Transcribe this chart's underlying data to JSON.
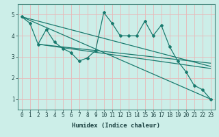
{
  "xlabel": "Humidex (Indice chaleur)",
  "ylabel": "",
  "bg_color": "#cceee8",
  "plot_bg_color": "#cceee8",
  "line_color": "#1a7a6e",
  "grid_color": "#e8b8b8",
  "xlim": [
    -0.5,
    23.5
  ],
  "ylim": [
    0.5,
    5.5
  ],
  "xticks": [
    0,
    1,
    2,
    3,
    4,
    5,
    6,
    7,
    8,
    9,
    10,
    11,
    12,
    13,
    14,
    15,
    16,
    17,
    18,
    19,
    20,
    21,
    22,
    23
  ],
  "yticks": [
    1,
    2,
    3,
    4,
    5
  ],
  "series_zigzag_x": [
    0,
    1,
    2,
    3,
    4,
    5,
    6,
    7,
    8,
    9,
    10,
    11,
    12,
    13,
    14,
    15,
    16,
    17,
    18,
    19,
    20,
    21,
    22,
    23
  ],
  "series_zigzag_y": [
    4.9,
    4.6,
    3.6,
    4.3,
    3.7,
    3.4,
    3.2,
    2.8,
    2.95,
    3.3,
    5.1,
    4.6,
    4.0,
    4.0,
    4.0,
    4.7,
    4.0,
    4.5,
    3.5,
    2.8,
    2.3,
    1.65,
    1.45,
    1.0
  ],
  "series_line1_x": [
    0,
    23
  ],
  "series_line1_y": [
    4.9,
    1.0
  ],
  "series_line2_x": [
    0,
    23
  ],
  "series_line2_y": [
    4.9,
    2.55
  ],
  "series_line3_x": [
    2,
    23
  ],
  "series_line3_y": [
    3.6,
    2.45
  ],
  "series_line4_x": [
    2,
    23
  ],
  "series_line4_y": [
    3.6,
    2.7
  ]
}
